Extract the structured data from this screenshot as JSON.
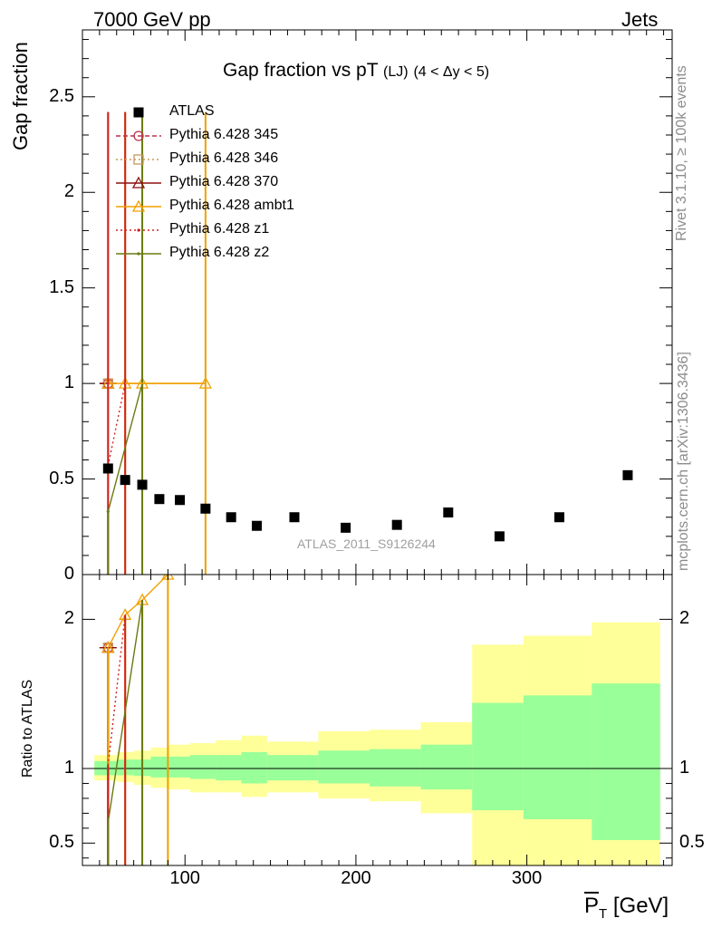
{
  "header": {
    "left": "7000 GeV pp",
    "right": "Jets"
  },
  "side_text": {
    "rivet": "Rivet 3.1.10, ≥ 100k events",
    "mcplots": "mcplots.cern.ch [arXiv:1306.3436]"
  },
  "chart_data": {
    "type": "scatter",
    "title": "Gap fraction vs pT",
    "title_suffix": "(LJ)",
    "title_cut": "(4 < Δy < 5)",
    "ylabel": "Gap fraction",
    "ratio_ylabel": "Ratio to ATLAS",
    "xlabel_var": "P",
    "xlabel_sub": "T",
    "xlabel_unit": "[GeV]",
    "watermark": "ATLAS_2011_S9126244",
    "xlim": [
      40,
      385
    ],
    "ylim": [
      0,
      2.85
    ],
    "ratio_ylim": [
      0.35,
      2.3
    ],
    "x_ticks": [
      "100",
      "200",
      "300"
    ],
    "y_ticks": [
      "0",
      "0.5",
      "1",
      "1.5",
      "2",
      "2.5"
    ],
    "ratio_y_ticks": [
      "0.5",
      "1",
      "2"
    ],
    "grid": false,
    "legend_position": "top-left",
    "atlas": {
      "name": "ATLAS",
      "x": [
        55,
        65,
        75,
        85,
        97,
        112,
        127,
        142,
        164,
        194,
        224,
        254,
        284,
        319,
        359
      ],
      "y": [
        0.555,
        0.495,
        0.47,
        0.395,
        0.39,
        0.345,
        0.3,
        0.255,
        0.3,
        0.245,
        0.26,
        0.325,
        0.2,
        0.3,
        0.52
      ]
    },
    "bands": {
      "edges": [
        47,
        60,
        70,
        80,
        90,
        103,
        118,
        133,
        148,
        178,
        208,
        238,
        268,
        298,
        338,
        378
      ],
      "inner_lo": [
        0.955,
        0.955,
        0.95,
        0.94,
        0.94,
        0.93,
        0.92,
        0.9,
        0.92,
        0.9,
        0.88,
        0.86,
        0.72,
        0.66,
        0.52
      ],
      "inner_hi": [
        1.05,
        1.06,
        1.06,
        1.08,
        1.08,
        1.09,
        1.09,
        1.11,
        1.09,
        1.12,
        1.13,
        1.16,
        1.44,
        1.49,
        1.57
      ],
      "outer_lo": [
        0.92,
        0.91,
        0.89,
        0.87,
        0.86,
        0.84,
        0.84,
        0.81,
        0.84,
        0.8,
        0.78,
        0.7,
        0.35,
        0.35,
        0.35
      ],
      "outer_hi": [
        1.09,
        1.11,
        1.12,
        1.14,
        1.16,
        1.17,
        1.19,
        1.22,
        1.18,
        1.25,
        1.26,
        1.31,
        1.83,
        1.89,
        1.98
      ],
      "inner_color": "#99ff99",
      "outer_color": "#ffff99"
    },
    "series": [
      {
        "name": "Pythia 6.428 345",
        "color": "#c0304a",
        "dash": "5,3",
        "marker": "circle-open",
        "points": [
          {
            "x": 55,
            "y": 1.0,
            "ylo": 1.0,
            "yhi": 1.0,
            "xlo": 50,
            "xhi": 60
          }
        ],
        "ratio_points": [
          {
            "x": 55,
            "y": 1.81
          }
        ]
      },
      {
        "name": "Pythia 6.428 346",
        "color": "#c79a5a",
        "dash": "2,3",
        "marker": "square-open",
        "points": [
          {
            "x": 55,
            "y": 1.0,
            "ylo": 1.0,
            "yhi": 1.0,
            "xlo": 50,
            "xhi": 60
          }
        ],
        "ratio_points": [
          {
            "x": 55,
            "y": 1.81
          }
        ]
      },
      {
        "name": "Pythia 6.428 370",
        "color": "#8b1010",
        "dash": "",
        "marker": "triangle-open",
        "points": [
          {
            "x": 55,
            "y": 1.0,
            "ylo": 1.0,
            "yhi": 1.0,
            "xlo": 50,
            "xhi": 60
          }
        ],
        "ratio_points": [
          {
            "x": 55,
            "y": 1.81
          }
        ]
      },
      {
        "name": "Pythia 6.428 ambt1",
        "color": "#f0a000",
        "dash": "",
        "marker": "triangle-open",
        "points": [
          {
            "x": 55,
            "y": 1.0,
            "ylo": 0,
            "yhi": 2.42
          },
          {
            "x": 65,
            "y": 1.0,
            "ylo": 0,
            "yhi": 2.42
          },
          {
            "x": 75,
            "y": 1.0,
            "ylo": 1.0,
            "yhi": 1.0
          },
          {
            "x": 112,
            "y": 1.0,
            "ylo": 0,
            "yhi": 2.42
          }
        ],
        "ratio_points": [
          {
            "x": 55,
            "y": 1.81
          },
          {
            "x": 65,
            "y": 2.03
          },
          {
            "x": 75,
            "y": 2.13
          },
          {
            "x": 90,
            "y": 2.3
          }
        ]
      },
      {
        "name": "Pythia 6.428 z1",
        "color": "#d02020",
        "dash": "2,3",
        "marker": "dot",
        "points": [
          {
            "x": 55,
            "y": 0.57,
            "ylo": 0,
            "yhi": 2.42
          },
          {
            "x": 65,
            "y": 1.0,
            "ylo": 0,
            "yhi": 2.42
          }
        ],
        "ratio_points": [
          {
            "x": 55,
            "y": 1.02
          },
          {
            "x": 65,
            "y": 2.03
          }
        ]
      },
      {
        "name": "Pythia 6.428 z2",
        "color": "#6b7a10",
        "dash": "",
        "marker": "dot",
        "points": [
          {
            "x": 55,
            "y": 0.33,
            "ylo": 0,
            "yhi": 0.33
          },
          {
            "x": 75,
            "y": 1.0,
            "ylo": 0,
            "yhi": 2.42
          }
        ],
        "ratio_points": [
          {
            "x": 55,
            "y": 0.64
          },
          {
            "x": 75,
            "y": 2.13
          }
        ]
      }
    ]
  }
}
